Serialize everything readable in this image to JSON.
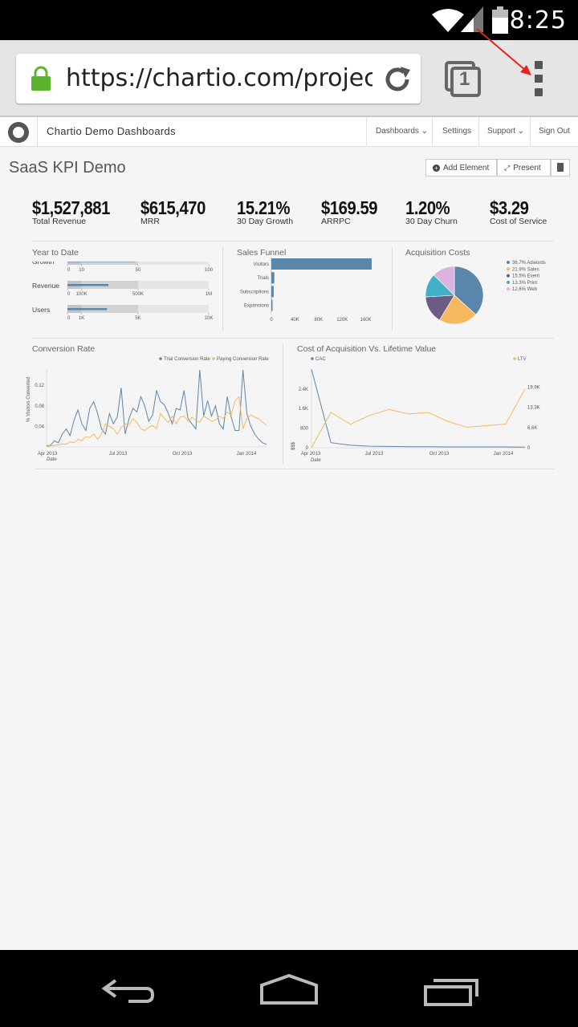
{
  "status_bar": {
    "time": "8:25"
  },
  "browser": {
    "url": "https://chartio.com/project/",
    "tab_count": "1"
  },
  "app": {
    "brand": "Chartio Demo Dashboards",
    "nav": [
      "Dashboards",
      "Settings",
      "Support",
      "Sign Out"
    ]
  },
  "dashboard": {
    "title": "SaaS KPI Demo",
    "buttons": {
      "add": "Add Element",
      "present": "Present"
    }
  },
  "kpis": [
    {
      "value": "$1,527,881",
      "label": "Total Revenue"
    },
    {
      "value": "$615,470",
      "label": "MRR"
    },
    {
      "value": "15.21%",
      "label": "30 Day Growth"
    },
    {
      "value": "$169.59",
      "label": "ARRPC"
    },
    {
      "value": "1.20%",
      "label": "30 Day Churn"
    },
    {
      "value": "$3.29",
      "label": "Cost of Service"
    }
  ],
  "year_to_date": {
    "title": "Year to Date",
    "rows": [
      {
        "label": "Growth",
        "ticks": [
          "0",
          "10",
          "50",
          "100"
        ],
        "max": 100,
        "ranges": [
          0.1,
          0.5,
          1.0
        ],
        "value": 0.48
      },
      {
        "label": "Revenue",
        "ticks": [
          "0",
          "100K",
          "500K",
          "1M"
        ],
        "max": 1000000,
        "ranges": [
          0.1,
          0.5,
          1.0
        ],
        "value": 0.29
      },
      {
        "label": "Users",
        "ticks": [
          "0",
          "1K",
          "5K",
          "10K"
        ],
        "max": 10000,
        "ranges": [
          0.1,
          0.5,
          1.0
        ],
        "value": 0.28
      }
    ]
  },
  "chart_data": [
    {
      "type": "bar",
      "orientation": "horizontal",
      "title": "Sales Funnel",
      "categories": [
        "Visitors",
        "Trials",
        "Subscriptions",
        "Expansions"
      ],
      "values": [
        170000,
        5000,
        4000,
        1000
      ],
      "xlim": [
        0,
        170000
      ],
      "ticks": [
        "0",
        "40K",
        "80K",
        "120K",
        "160K"
      ],
      "color": "#5b86ab"
    },
    {
      "type": "pie",
      "title": "Acquisition Costs",
      "labels": [
        "36.7% Adwords",
        "21.9% Sales",
        "15.5% Event",
        "13.3% Print",
        "12.6% Web"
      ],
      "values": [
        36.7,
        21.9,
        15.5,
        13.3,
        12.6
      ],
      "colors": [
        "#5b86ab",
        "#f8b860",
        "#6b5b85",
        "#3fb0c8",
        "#dcb3e0"
      ],
      "legend": "right"
    },
    {
      "type": "line",
      "title": "Conversion Rate",
      "ylabel": "% Visitors Converted",
      "xlabel": "Date",
      "x_ticks": [
        "Apr 2013",
        "Jul 2013",
        "Oct 2013",
        "Jan 2014"
      ],
      "y_ticks": [
        "0.04",
        "0.08",
        "0.12"
      ],
      "ylim": [
        0,
        0.15
      ],
      "legend": "top-right",
      "series": [
        {
          "name": "Trial Conversion Rate",
          "color": "#5b86ab",
          "values": [
            0.002,
            0.003,
            0.012,
            0.008,
            0.025,
            0.035,
            0.022,
            0.052,
            0.072,
            0.045,
            0.032,
            0.075,
            0.088,
            0.065,
            0.035,
            0.025,
            0.065,
            0.045,
            0.058,
            0.115,
            0.025,
            0.055,
            0.075,
            0.068,
            0.098,
            0.08,
            0.05,
            0.062,
            0.11,
            0.088,
            0.082,
            0.065,
            0.045,
            0.075,
            0.072,
            0.11,
            0.055,
            0.045,
            0.035,
            0.15,
            0.06,
            0.09,
            0.06,
            0.08,
            0.045,
            0.035,
            0.098,
            0.058,
            0.032,
            0.032,
            0.15,
            0.065,
            0.04,
            0.025,
            0.015,
            0.008,
            0.005
          ]
        },
        {
          "name": "Paying Conversion Rate",
          "color": "#f8b860",
          "values": [
            0.001,
            0.002,
            0.003,
            0.004,
            0.006,
            0.005,
            0.01,
            0.008,
            0.015,
            0.012,
            0.02,
            0.018,
            0.025,
            0.015,
            0.025,
            0.045,
            0.04,
            0.035,
            0.025,
            0.038,
            0.045,
            0.042,
            0.055,
            0.048,
            0.035,
            0.032,
            0.038,
            0.042,
            0.035,
            0.065,
            0.055,
            0.048,
            0.06,
            0.045,
            0.058,
            0.06,
            0.05,
            0.058,
            0.052,
            0.048,
            0.06,
            0.055,
            0.05,
            0.052,
            0.06,
            0.055,
            0.068,
            0.062,
            0.09,
            0.098,
            0.035,
            0.055,
            0.062,
            0.058,
            0.055,
            0.048,
            0.042
          ]
        }
      ]
    },
    {
      "type": "line",
      "title": "Cost of Acquisition Vs. Lifetime Value",
      "ylabel": "$$$",
      "xlabel": "Date",
      "x_ticks": [
        "Apr 2013",
        "Jul 2013",
        "Oct 2013",
        "Jan 2014"
      ],
      "y_ticks_left": [
        "0",
        "800",
        "1.6K",
        "2.4K"
      ],
      "y_ticks_right": [
        "0",
        "6.6K",
        "13.3K",
        "19.9K"
      ],
      "legend": "top",
      "series": [
        {
          "name": "CAC",
          "color": "#5b86ab",
          "axis": "left",
          "values": [
            3100,
            200,
            100,
            60,
            50,
            40,
            40,
            30,
            30,
            30,
            30,
            25
          ]
        },
        {
          "name": "LTV",
          "color": "#f8b860",
          "axis": "right",
          "values": [
            0,
            12000,
            8000,
            11000,
            13000,
            11500,
            12000,
            9000,
            7000,
            7500,
            8000,
            20000
          ]
        }
      ]
    }
  ]
}
